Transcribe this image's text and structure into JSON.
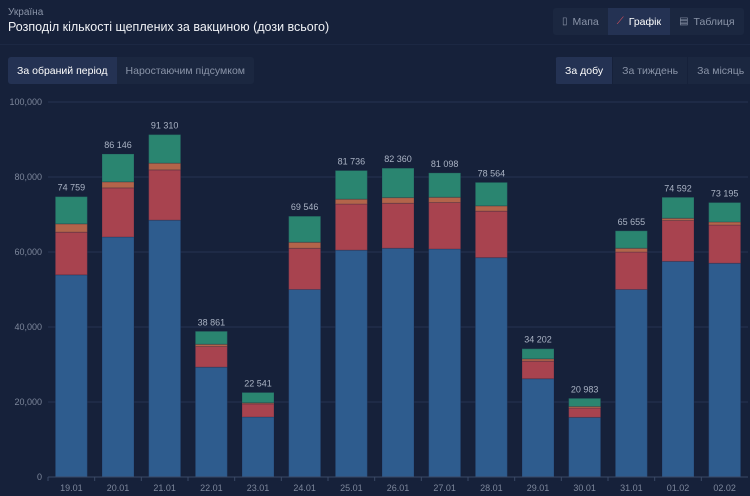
{
  "header": {
    "region": "Україна",
    "title": "Розподіл кількості щеплених за вакциною (дози всього)"
  },
  "view_tabs": [
    {
      "label": "Мапа",
      "icon": "map-icon",
      "active": false
    },
    {
      "label": "Графік",
      "icon": "chart-icon",
      "active": true
    },
    {
      "label": "Таблиця",
      "icon": "table-icon",
      "active": false
    }
  ],
  "mode_tabs": [
    {
      "label": "За обраний період",
      "active": true
    },
    {
      "label": "Наростаючим підсумком",
      "active": false
    }
  ],
  "period_tabs": [
    {
      "label": "За добу",
      "active": true
    },
    {
      "label": "За тиждень",
      "active": false
    },
    {
      "label": "За місяць",
      "active": false
    }
  ],
  "colors": {
    "background": "#16213a",
    "accent": "#e0525e",
    "series": [
      "#2e5c8e",
      "#a8434f",
      "#b3644a",
      "#2a8570"
    ]
  },
  "chart_data": {
    "type": "bar",
    "stacked": true,
    "grid": true,
    "ylim": [
      0,
      100000
    ],
    "yticks": [
      "0",
      "20,000",
      "40,000",
      "60,000",
      "80,000",
      "100,000"
    ],
    "ytick_values": [
      0,
      20000,
      40000,
      60000,
      80000,
      100000
    ],
    "categories": [
      "19.01",
      "20.01",
      "21.01",
      "22.01",
      "23.01",
      "24.01",
      "25.01",
      "26.01",
      "27.01",
      "28.01",
      "29.01",
      "30.01",
      "31.01",
      "01.02",
      "02.02"
    ],
    "totals": [
      74759,
      86146,
      91310,
      38861,
      22541,
      69546,
      81736,
      82360,
      81098,
      78564,
      34202,
      20983,
      65655,
      74592,
      73195
    ],
    "total_labels": [
      "74 759",
      "86 146",
      "91 310",
      "38 861",
      "22 541",
      "69 546",
      "81 736",
      "82 360",
      "81 098",
      "78 564",
      "34 202",
      "20 983",
      "65 655",
      "74 592",
      "73 195"
    ],
    "series": [
      {
        "values": [
          53900,
          64000,
          68500,
          29300,
          16000,
          50000,
          60500,
          61000,
          60800,
          58500,
          26200,
          15900,
          50000,
          57500,
          57000
        ]
      },
      {
        "values": [
          11400,
          13100,
          13400,
          5500,
          3500,
          11000,
          12300,
          12000,
          12400,
          12400,
          4700,
          2500,
          10000,
          10900,
          10200
        ]
      },
      {
        "values": [
          2200,
          1600,
          1800,
          600,
          300,
          1600,
          1300,
          1500,
          1400,
          1400,
          600,
          400,
          1000,
          600,
          800
        ]
      },
      {
        "values": [
          7259,
          7446,
          7610,
          3461,
          2741,
          6946,
          7636,
          7860,
          6498,
          6264,
          2702,
          2183,
          4655,
          5592,
          5195
        ]
      }
    ]
  }
}
